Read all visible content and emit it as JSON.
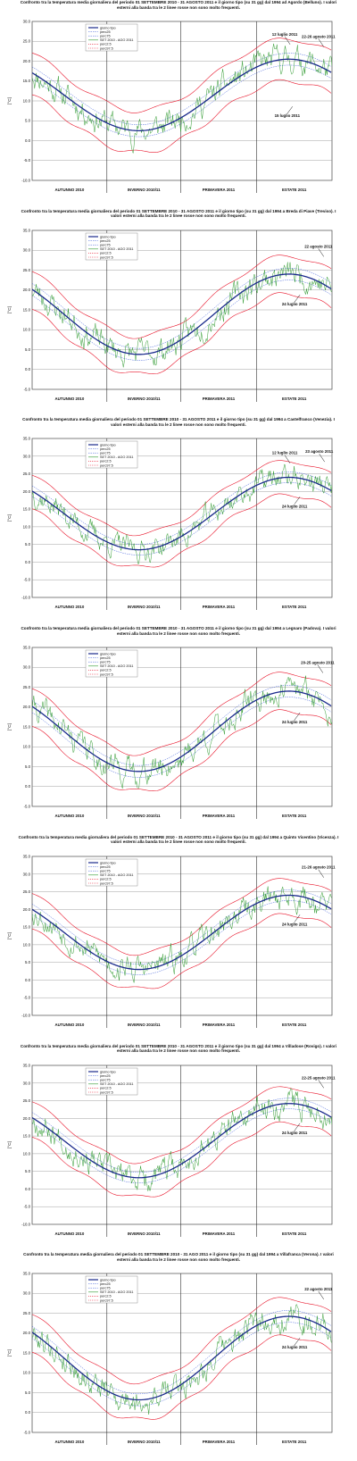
{
  "chart_data": [
    {
      "type": "line",
      "title": "Confronto tra la temperatura media giornaliera del periodo 01 SETTEMBRE 2010 - 31 AGOSTO 2011 e il giorno tipo (su 31 gg) dal 1994 ad Agordo (Belluno). I valori esterni alla banda tra le 2 linee rosse non sono molto frequenti.",
      "ylabel": "[°C]",
      "y_ticks": [
        "30.0",
        "25.0",
        "20.0",
        "15.0",
        "10.0",
        "5.0",
        "0.0",
        "-5.0",
        "-10.0"
      ],
      "ylim": [
        -10,
        30
      ],
      "seasons": [
        {
          "label": "AUTUNNO 2010",
          "color": "#111111"
        },
        {
          "label": "INVERNO 2010/11",
          "color": "#111111"
        },
        {
          "label": "PRIMAVERA 2011",
          "color": "#111111"
        },
        {
          "label": "ESTATE 2011",
          "color": "#e8142a"
        }
      ],
      "legend": [
        "giorno tipo",
        "perc25",
        "perc75",
        "SET 2010 - AGO 2011",
        "perc2.5",
        "perc97.5"
      ],
      "annotations": [
        {
          "text": "12 luglio 2011",
          "day": 314,
          "value": 24.2
        },
        {
          "text": "22-26 agosto 2011",
          "day": 355,
          "value": 23.6
        },
        {
          "text": "15 luglio 2011",
          "day": 317,
          "value": 8.6
        }
      ],
      "typical_day_curve": {
        "summer_max": 20.5,
        "winter_min": 2.5,
        "min_day": 130
      },
      "percentile_offsets": {
        "perc25": -1.5,
        "perc75": 1.5,
        "perc2.5": -5.5,
        "perc97.5": 5.0
      },
      "observed": {
        "amplitude": 3.0,
        "seed": 11
      }
    },
    {
      "type": "line",
      "title": "Confronto tra la temperatura media giornaliera del periodo 01 SETTEMBRE 2010 - 31 AGOSTO 2011 e il giorno tipo (su 31 gg) dal 1994 a Breda di Piave (Treviso). I valori esterni alla banda tra le 2 linee rosse non sono molto frequenti.",
      "ylabel": "[°C]",
      "y_ticks": [
        "35.0",
        "30.0",
        "25.0",
        "20.0",
        "15.0",
        "10.0",
        "5.0",
        "0.0",
        "-5.0"
      ],
      "ylim": [
        -5,
        35
      ],
      "seasons": [
        {
          "label": "AUTUNNO 2010",
          "color": "#111111"
        },
        {
          "label": "INVERNO 2010/11",
          "color": "#111111"
        },
        {
          "label": "PRIMAVERA 2011",
          "color": "#111111"
        },
        {
          "label": "ESTATE 2011",
          "color": "#e8142a"
        }
      ],
      "legend": [
        "giorno tipo",
        "perc25",
        "perc75",
        "SET 2010 - AGO 2011",
        "perc2.5",
        "perc97.5"
      ],
      "annotations": [
        {
          "text": "22 agosto 2011",
          "day": 355,
          "value": 28.4
        },
        {
          "text": "24 luglio 2011",
          "day": 326,
          "value": 18.8
        }
      ],
      "typical_day_curve": {
        "summer_max": 24.0,
        "winter_min": 3.8,
        "min_day": 130
      },
      "percentile_offsets": {
        "perc25": -1.5,
        "perc75": 1.5,
        "perc2.5": -5.0,
        "perc97.5": 4.5
      },
      "observed": {
        "amplitude": 3.0,
        "seed": 23
      }
    },
    {
      "type": "line",
      "title": "Confronto tra la temperatura media giornaliera del periodo 01 SETTEMBRE 2010 - 31 AGOSTO 2011 e il giorno tipo (su 31 gg) dal 1994 a Castelfranco (Venezia). I valori esterni alla banda tra le 2 linee rosse non sono molto frequenti.",
      "ylabel": "[°C]",
      "y_ticks": [
        "35.0",
        "30.0",
        "25.0",
        "20.0",
        "15.0",
        "10.0",
        "5.0",
        "0.0",
        "-5.0",
        "-10.0"
      ],
      "ylim": [
        -10,
        35
      ],
      "seasons": [
        {
          "label": "AUTUNNO 2010",
          "color": "#111111"
        },
        {
          "label": "INVERNO 2010/11",
          "color": "#111111"
        },
        {
          "label": "PRIMAVERA 2011",
          "color": "#111111"
        },
        {
          "label": "ESTATE 2011",
          "color": "#e8142a"
        }
      ],
      "legend": [
        "giorno tipo",
        "perc25",
        "perc75",
        "SET 2010 - AGO 2011",
        "perc2.5",
        "perc97.5"
      ],
      "annotations": [
        {
          "text": "12 luglio 2011",
          "day": 314,
          "value": 28.0
        },
        {
          "text": "23 agosto 2011",
          "day": 356,
          "value": 28.4
        },
        {
          "text": "24 luglio 2011",
          "day": 326,
          "value": 18.5
        }
      ],
      "typical_day_curve": {
        "summer_max": 24.0,
        "winter_min": 3.5,
        "min_day": 130
      },
      "percentile_offsets": {
        "perc25": -1.5,
        "perc75": 1.5,
        "perc2.5": -5.0,
        "perc97.5": 4.5
      },
      "observed": {
        "amplitude": 3.0,
        "seed": 37
      }
    },
    {
      "type": "line",
      "title": "Confronto tra la temperatura media giornaliera del periodo 01 SETTEMBRE 2010 - 31 AGOSTO 2011 e il giorno tipo (su 31 gg) dal 1994 a Legnaro (Padova). I valori esterni alla banda tra le 2 linee rosse non sono molto frequenti.",
      "ylabel": "[°C]",
      "y_ticks": [
        "35.0",
        "30.0",
        "25.0",
        "20.0",
        "15.0",
        "10.0",
        "5.0",
        "0.0",
        "-5.0"
      ],
      "ylim": [
        -5,
        35
      ],
      "seasons": [
        {
          "label": "AUTUNNO 2010",
          "color": "#111111"
        },
        {
          "label": "INVERNO 2010/11",
          "color": "#111111"
        },
        {
          "label": "PRIMAVERA 2011",
          "color": "#111111"
        },
        {
          "label": "ESTATE 2011",
          "color": "#e8142a"
        }
      ],
      "legend": [
        "giorno tipo",
        "perc25",
        "perc75",
        "SET 2010 - AGO 2011",
        "perc2.5",
        "perc97.5"
      ],
      "annotations": [
        {
          "text": "20-25 agosto 2011",
          "day": 354,
          "value": 28.6
        },
        {
          "text": "24 luglio 2011",
          "day": 326,
          "value": 18.6
        }
      ],
      "typical_day_curve": {
        "summer_max": 24.0,
        "winter_min": 3.8,
        "min_day": 130
      },
      "percentile_offsets": {
        "perc25": -1.5,
        "perc75": 1.5,
        "perc2.5": -5.0,
        "perc97.5": 4.5
      },
      "observed": {
        "amplitude": 3.0,
        "seed": 41
      }
    },
    {
      "type": "line",
      "title": "Confronto tra la temperatura media giornaliera del periodo 01 SETTEMBRE 2010 - 31 AGOSTO 2011 e il giorno tipo (su 31 gg) dal 1994 a Quinto Vicentino (Vicenza). I valori esterni alla banda tra le 2 linee rosse non sono molto frequenti.",
      "ylabel": "[°C]",
      "y_ticks": [
        "35.0",
        "30.0",
        "25.0",
        "20.0",
        "15.0",
        "10.0",
        "5.0",
        "0.0",
        "-5.0",
        "-10.0"
      ],
      "ylim": [
        -10,
        35
      ],
      "seasons": [
        {
          "label": "AUTUNNO 2010",
          "color": "#111111"
        },
        {
          "label": "INVERNO 2010/11",
          "color": "#111111"
        },
        {
          "label": "PRIMAVERA 2011",
          "color": "#111111"
        },
        {
          "label": "ESTATE 2011",
          "color": "#e8142a"
        }
      ],
      "legend": [
        "giorno tipo",
        "perc25",
        "perc75",
        "SET 2010 - AGO 2011",
        "perc2.5",
        "perc97.5"
      ],
      "annotations": [
        {
          "text": "21-26 agosto 2011",
          "day": 355,
          "value": 29.0
        },
        {
          "text": "24 luglio 2011",
          "day": 326,
          "value": 18.5
        }
      ],
      "typical_day_curve": {
        "summer_max": 24.0,
        "winter_min": 3.0,
        "min_day": 130
      },
      "percentile_offsets": {
        "perc25": -1.5,
        "perc75": 1.5,
        "perc2.5": -5.5,
        "perc97.5": 4.5
      },
      "observed": {
        "amplitude": 3.2,
        "seed": 53
      }
    },
    {
      "type": "line",
      "title": "Confronto tra la temperatura media giornaliera del periodo 01 SETTEMBRE 2010 - 31 AGOSTO 2011 e il giorno tipo (su 31 gg) dal 1994 a Villadose (Rovigo). I valori esterni alla banda tra le 2 linee rosse non sono molto frequenti.",
      "ylabel": "[°C]",
      "y_ticks": [
        "35.0",
        "30.0",
        "25.0",
        "20.0",
        "15.0",
        "10.0",
        "5.0",
        "0.0",
        "-5.0",
        "-10.0"
      ],
      "ylim": [
        -10,
        35
      ],
      "seasons": [
        {
          "label": "AUTUNNO 2010",
          "color": "#111111"
        },
        {
          "label": "INVERNO 2010/11",
          "color": "#111111"
        },
        {
          "label": "PRIMAVERA 2011",
          "color": "#111111"
        },
        {
          "label": "ESTATE 2011",
          "color": "#e8142a"
        }
      ],
      "legend": [
        "giorno tipo",
        "perc25",
        "perc75",
        "SET 2010 - AGO 2011",
        "perc2.5",
        "perc97.5"
      ],
      "annotations": [
        {
          "text": "22-25 agosto 2011",
          "day": 355,
          "value": 28.6
        },
        {
          "text": "24 luglio 2011",
          "day": 326,
          "value": 18.6
        }
      ],
      "typical_day_curve": {
        "summer_max": 24.2,
        "winter_min": 3.2,
        "min_day": 130
      },
      "percentile_offsets": {
        "perc25": -1.5,
        "perc75": 1.5,
        "perc2.5": -5.5,
        "perc97.5": 4.5
      },
      "observed": {
        "amplitude": 3.2,
        "seed": 67
      }
    },
    {
      "type": "line",
      "title": "Confronto tra la temperatura media giornaliera del periodo 01 SETTEMBRE 2010 - 31 AGO 2011 e il giorno tipo (su 31 gg) dal 1994 a Villafranca (Verona). I valori esterni alla banda tra le 2 linee rosse non sono molto frequenti.",
      "ylabel": "[°C]",
      "y_ticks": [
        "35.0",
        "30.0",
        "25.0",
        "20.0",
        "15.0",
        "10.0",
        "5.0",
        "0.0",
        "-5.0"
      ],
      "ylim": [
        -5,
        35
      ],
      "seasons": [
        {
          "label": "AUTUNNO 2010",
          "color": "#111111"
        },
        {
          "label": "INVERNO 2010/11",
          "color": "#111111"
        },
        {
          "label": "PRIMAVERA 2011",
          "color": "#111111"
        },
        {
          "label": "ESTATE 2011",
          "color": "#e8142a"
        }
      ],
      "legend": [
        "giorno tipo",
        "perc25",
        "perc75",
        "SET 2010 - AGO 2011",
        "perc2.5",
        "perc97.5"
      ],
      "annotations": [
        {
          "text": "22 agosto 2011",
          "day": 355,
          "value": 28.5
        },
        {
          "text": "24 luglio 2011",
          "day": 326,
          "value": 18.8
        }
      ],
      "typical_day_curve": {
        "summer_max": 24.2,
        "winter_min": 3.2,
        "min_day": 130
      },
      "percentile_offsets": {
        "perc25": -1.5,
        "perc75": 1.5,
        "perc2.5": -5.0,
        "perc97.5": 4.5
      },
      "observed": {
        "amplitude": 3.0,
        "seed": 79
      }
    }
  ],
  "colors": {
    "typical": "#1a2a8c",
    "perc25_75": "#3a5ad8",
    "observed": "#2e9a2e",
    "perc2_97": "#e8142a",
    "grid": "#888888",
    "plot_border": "#444444"
  }
}
